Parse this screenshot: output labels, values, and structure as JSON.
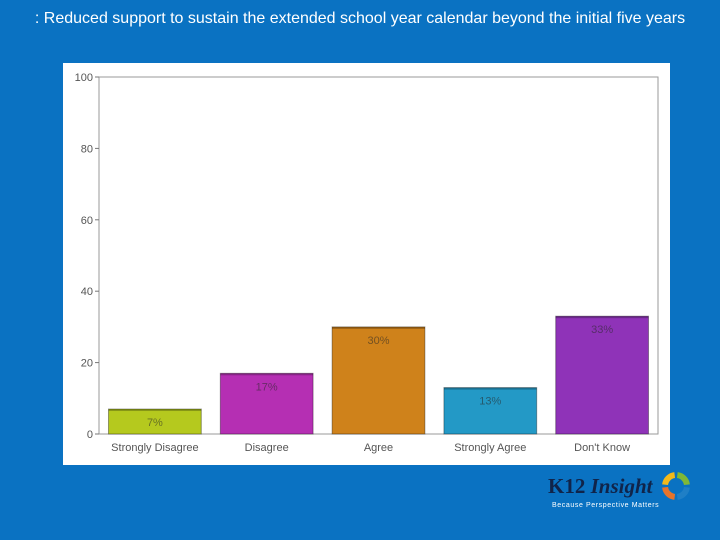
{
  "title": ": Reduced support to sustain the extended school year calendar beyond the initial five years",
  "chart_data": {
    "type": "bar",
    "categories": [
      "Strongly Disagree",
      "Disagree",
      "Agree",
      "Strongly Agree",
      "Don't Know"
    ],
    "values": [
      7,
      17,
      30,
      13,
      33
    ],
    "data_labels": [
      "7%",
      "17%",
      "30%",
      "13%",
      "33%"
    ],
    "colors": [
      "#b5c91e",
      "#b52fb3",
      "#cf821b",
      "#2399c6",
      "#8f33b8"
    ],
    "y_ticks": [
      0,
      20,
      40,
      60,
      80,
      100
    ],
    "ylim": [
      0,
      100
    ],
    "grid": false,
    "legend": "none"
  },
  "logo": {
    "k12": "K12",
    "insight": "Insight",
    "tagline": "Because Perspective Matters",
    "ring_colors": [
      "#7fb838",
      "#1f7fc6",
      "#e8742a",
      "#f3b91b"
    ]
  }
}
